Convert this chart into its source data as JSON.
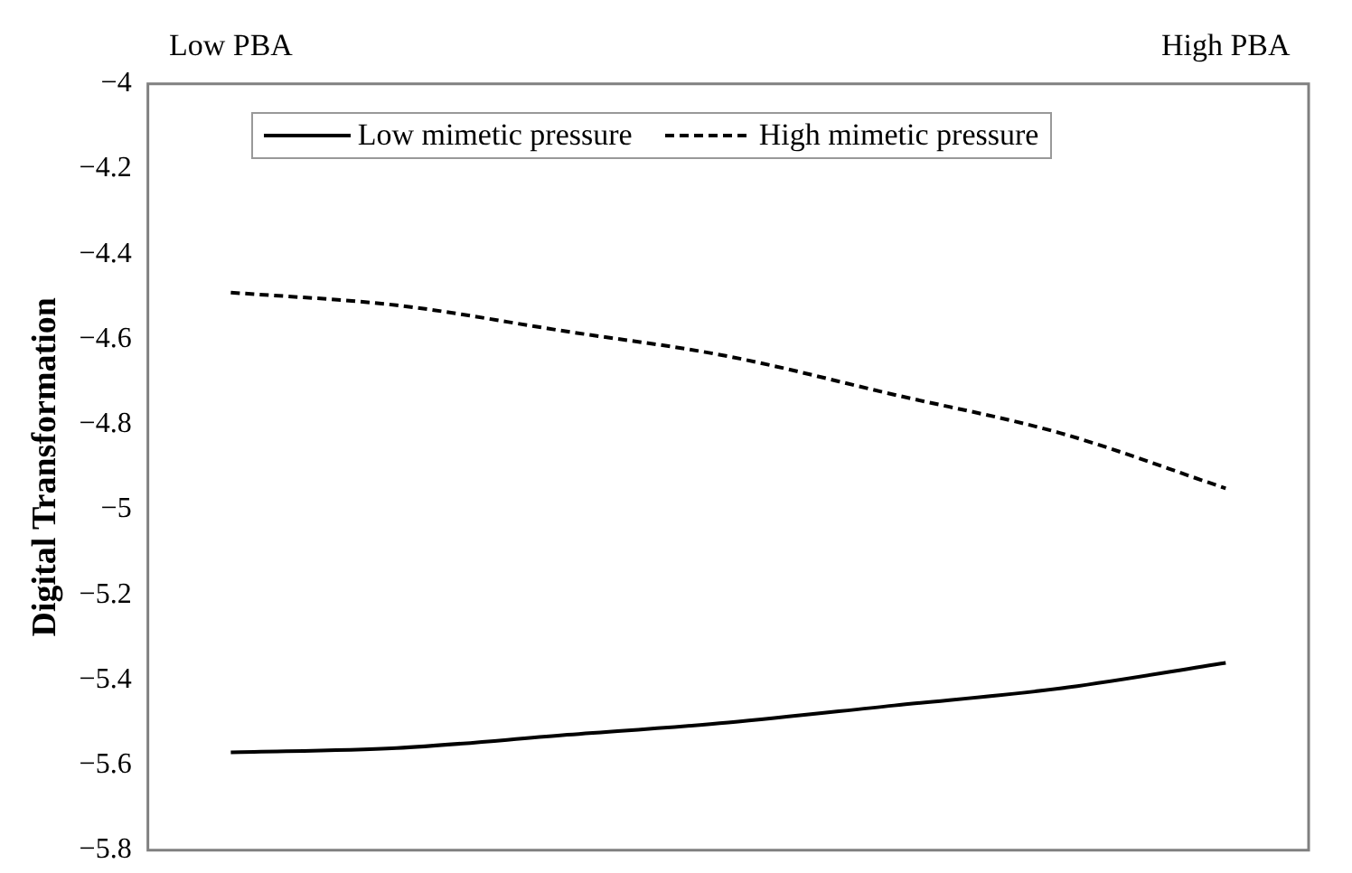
{
  "chart_data": {
    "type": "line",
    "ylabel": "Digital Transformation",
    "categories": [
      "Low PBA",
      null,
      null,
      null,
      null,
      null,
      "High PBA"
    ],
    "ylim": [
      -5.8,
      -4
    ],
    "yticks": [
      {
        "value": -5.8,
        "label": "−5.8"
      },
      {
        "value": -5.6,
        "label": "−5.6"
      },
      {
        "value": -5.4,
        "label": "−5.4"
      },
      {
        "value": -5.2,
        "label": "−5.2"
      },
      {
        "value": -5,
        "label": "−5"
      },
      {
        "value": -4.8,
        "label": "−4.8"
      },
      {
        "value": -4.6,
        "label": "−4.6"
      },
      {
        "value": -4.4,
        "label": "−4.4"
      },
      {
        "value": -4.2,
        "label": "−4.2"
      },
      {
        "value": -4,
        "label": "−4"
      }
    ],
    "series": [
      {
        "name": "Low mimetic pressure",
        "color": "#000000",
        "line_style": "solid",
        "values": [
          -5.57,
          -5.56,
          -5.53,
          -5.5,
          -5.46,
          -5.42,
          -5.36
        ]
      },
      {
        "name": "High mimetic pressure",
        "color": "#000000",
        "line_style": "dashed",
        "values": [
          -4.49,
          -4.52,
          -4.58,
          -4.64,
          -4.73,
          -4.82,
          -4.95
        ]
      }
    ],
    "marker": "none",
    "grid": false,
    "legend": "top"
  }
}
